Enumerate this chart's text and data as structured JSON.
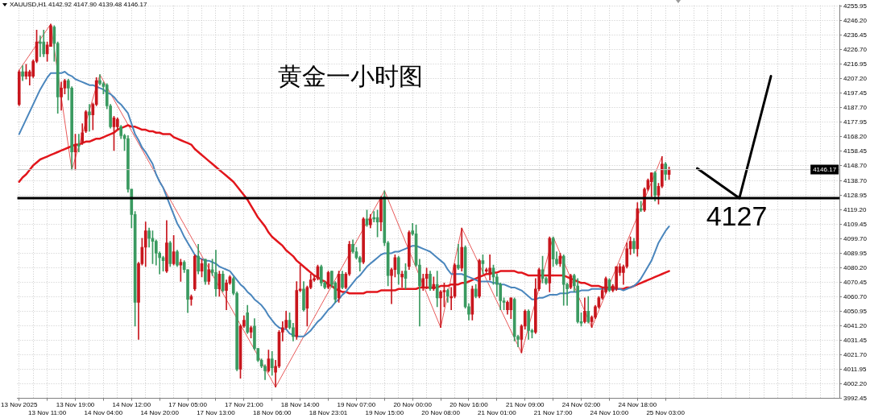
{
  "chart_data": {
    "type": "candlestick",
    "title": "黄金一小时图",
    "annotations": [
      "XAUUSD,H1 4142.92 4147.90 4139.48 4146.17"
    ],
    "categories": [
      "13 Nov 2025",
      null,
      null,
      null,
      null,
      null,
      null,
      null,
      "13 Nov 11:00",
      null,
      null,
      null,
      null,
      null,
      null,
      null,
      "13 Nov 19:00",
      null,
      null,
      null,
      null,
      null,
      null,
      null,
      "14 Nov 04:00",
      null,
      null,
      null,
      null,
      null,
      null,
      null,
      "14 Nov 12:00",
      null,
      null,
      null,
      null,
      null,
      null,
      null,
      "14 Nov 20:00",
      null,
      null,
      null,
      null,
      null,
      null,
      null,
      "17 Nov 05:00",
      null,
      null,
      null,
      null,
      null,
      null,
      null,
      "17 Nov 13:00",
      null,
      null,
      null,
      null,
      null,
      null,
      null,
      "17 Nov 21:00",
      null,
      null,
      null,
      null,
      null,
      null,
      null,
      "18 Nov 06:00",
      null,
      null,
      null,
      null,
      null,
      null,
      null,
      "18 Nov 14:00",
      null,
      null,
      null,
      null,
      null,
      null,
      null,
      "18 Nov 23:01",
      null,
      null,
      null,
      null,
      null,
      null,
      null,
      "19 Nov 07:00",
      null,
      null,
      null,
      null,
      null,
      null,
      null,
      "19 Nov 15:00",
      null,
      null,
      null,
      null,
      null,
      null,
      null,
      "20 Nov 00:00",
      null,
      null,
      null,
      null,
      null,
      null,
      null,
      "20 Nov 08:00",
      null,
      null,
      null,
      null,
      null,
      null,
      null,
      "20 Nov 16:00",
      null,
      null,
      null,
      null,
      null,
      null,
      null,
      "21 Nov 01:00",
      null,
      null,
      null,
      null,
      null,
      null,
      null,
      "21 Nov 09:00",
      null,
      null,
      null,
      null,
      null,
      null,
      null,
      "21 Nov 17:00",
      null,
      null,
      null,
      null,
      null,
      null,
      null,
      "24 Nov 02:00",
      null,
      null,
      null,
      null,
      null,
      null,
      null,
      "24 Nov 10:00",
      null,
      null,
      null,
      null,
      null,
      null,
      null,
      "24 Nov 18:00",
      null,
      null,
      null,
      null,
      null,
      null,
      null,
      "25 Nov 03:00",
      null,
      null,
      null,
      null,
      null,
      null,
      null,
      null,
      null,
      null,
      null,
      null,
      null,
      null,
      null,
      null,
      null,
      null,
      null,
      null,
      null,
      null,
      null,
      null,
      null,
      null,
      null,
      null,
      null,
      null,
      null,
      null,
      null,
      null,
      null,
      null,
      null,
      null,
      null,
      null,
      null,
      null,
      null,
      null,
      null,
      null,
      null,
      null,
      null
    ],
    "ohlc": [
      [
        4190,
        4213,
        4189,
        4212
      ],
      [
        4212,
        4216,
        4206,
        4209
      ],
      [
        4209,
        4217,
        4207,
        4212
      ],
      [
        4209,
        4213,
        4203,
        4212
      ],
      [
        4209,
        4220,
        4208,
        4219
      ],
      [
        4219,
        4240,
        4218,
        4232
      ],
      [
        4232,
        4236,
        4222,
        4231
      ],
      [
        4232,
        4240,
        4222,
        4224
      ],
      [
        4224,
        4232,
        4219,
        4230
      ],
      [
        4229,
        4244,
        4229,
        4243
      ],
      [
        4242,
        4243,
        4219,
        4231
      ],
      [
        4231,
        4232,
        4184,
        4195
      ],
      [
        4195,
        4205,
        4186,
        4201
      ],
      [
        4201,
        4207,
        4197,
        4206
      ],
      [
        4206,
        4207,
        4193,
        4201
      ],
      [
        4201,
        4202,
        4146,
        4158
      ],
      [
        4158,
        4170,
        4146,
        4163
      ],
      [
        4163,
        4170,
        4158,
        4162
      ],
      [
        4164,
        4177,
        4163,
        4171
      ],
      [
        4172,
        4186,
        4171,
        4185
      ],
      [
        4185,
        4190,
        4172,
        4183
      ],
      [
        4183,
        4191,
        4173,
        4190
      ],
      [
        4190,
        4208,
        4189,
        4206
      ],
      [
        4206,
        4210,
        4203,
        4204
      ],
      [
        4204,
        4205,
        4197,
        4202
      ],
      [
        4203,
        4204,
        4187,
        4189
      ],
      [
        4189,
        4190,
        4174,
        4175
      ],
      [
        4175,
        4182,
        4159,
        4181
      ],
      [
        4175,
        4181,
        4173,
        4180
      ],
      [
        4175,
        4176,
        4167,
        4169
      ],
      [
        4169,
        4170,
        4159,
        4167
      ],
      [
        4167,
        4169,
        4131,
        4133
      ],
      [
        4133,
        4133,
        4107,
        4116
      ],
      [
        4116,
        4118,
        4041,
        4057
      ],
      [
        4057,
        4084,
        4032,
        4083
      ],
      [
        4083,
        4100,
        4082,
        4094
      ],
      [
        4094,
        4111,
        4081,
        4105
      ],
      [
        4105,
        4107,
        4094,
        4100
      ],
      [
        4100,
        4105,
        4083,
        4098
      ],
      [
        4098,
        4099,
        4082,
        4090
      ],
      [
        4090,
        4091,
        4076,
        4087
      ],
      [
        4087,
        4088,
        4078,
        4085
      ],
      [
        4078,
        4112,
        4077,
        4097
      ],
      [
        4097,
        4098,
        4081,
        4083
      ],
      [
        4083,
        4102,
        4082,
        4091
      ],
      [
        4091,
        4092,
        4081,
        4082
      ],
      [
        4082,
        4086,
        4071,
        4084
      ],
      [
        4084,
        4085,
        4077,
        4079
      ],
      [
        4079,
        4079,
        4050,
        4059
      ],
      [
        4059,
        4062,
        4055,
        4061
      ],
      [
        4066,
        4089,
        4065,
        4088
      ],
      [
        4088,
        4096,
        4076,
        4078
      ],
      [
        4078,
        4086,
        4074,
        4083
      ],
      [
        4086,
        4086,
        4069,
        4071
      ],
      [
        4071,
        4083,
        4069,
        4079
      ],
      [
        4079,
        4086,
        4075,
        4077
      ],
      [
        4077,
        4092,
        4061,
        4066
      ],
      [
        4066,
        4078,
        4061,
        4076
      ],
      [
        4076,
        4078,
        4064,
        4065
      ],
      [
        4065,
        4072,
        4052,
        4070
      ],
      [
        4070,
        4075,
        4069,
        4074
      ],
      [
        4073,
        4074,
        4062,
        4063
      ],
      [
        4063,
        4064,
        4011,
        4012
      ],
      [
        4012,
        4042,
        4006,
        4041
      ],
      [
        4041,
        4048,
        4040,
        4045
      ],
      [
        4050,
        4055,
        4036,
        4037
      ],
      [
        4037,
        4041,
        4033,
        4040
      ],
      [
        4041,
        4046,
        4025,
        4026
      ],
      [
        4026,
        4026,
        4017,
        4018
      ],
      [
        4018,
        4019,
        4013,
        4014
      ],
      [
        4014,
        4015,
        4005,
        4011
      ],
      [
        4011,
        4025,
        4010,
        4019
      ],
      [
        4019,
        4024,
        4008,
        4013
      ],
      [
        4010,
        4018,
        4000,
        4014
      ],
      [
        4014,
        4038,
        4013,
        4037
      ],
      [
        4037,
        4044,
        4031,
        4040
      ],
      [
        4040,
        4051,
        4039,
        4045
      ],
      [
        4045,
        4050,
        4039,
        4040
      ],
      [
        4040,
        4043,
        4031,
        4034
      ],
      [
        4034,
        4071,
        4032,
        4065
      ],
      [
        4065,
        4082,
        4064,
        4066
      ],
      [
        4066,
        4071,
        4051,
        4052
      ],
      [
        4053,
        4068,
        4041,
        4067
      ],
      [
        4067,
        4076,
        4066,
        4072
      ],
      [
        4072,
        4075,
        4071,
        4073
      ],
      [
        4073,
        4082,
        4072,
        4081
      ],
      [
        4081,
        4082,
        4068,
        4070
      ],
      [
        4070,
        4071,
        4066,
        4067
      ],
      [
        4067,
        4078,
        4066,
        4077
      ],
      [
        4078,
        4078,
        4067,
        4069
      ],
      [
        4070,
        4071,
        4057,
        4059
      ],
      [
        4060,
        4078,
        4057,
        4076
      ],
      [
        4076,
        4078,
        4066,
        4067
      ],
      [
        4067,
        4077,
        4066,
        4076
      ],
      [
        4076,
        4098,
        4075,
        4096
      ],
      [
        4096,
        4099,
        4090,
        4091
      ],
      [
        4091,
        4094,
        4086,
        4087
      ],
      [
        4087,
        4088,
        4078,
        4084
      ],
      [
        4084,
        4114,
        4083,
        4113
      ],
      [
        4113,
        4119,
        4108,
        4109
      ],
      [
        4109,
        4116,
        4107,
        4113
      ],
      [
        4114,
        4118,
        4111,
        4113
      ],
      [
        4114,
        4119,
        4101,
        4111
      ],
      [
        4111,
        4128,
        4105,
        4127
      ],
      [
        4128,
        4132,
        4095,
        4097
      ],
      [
        4097,
        4098,
        4068,
        4075
      ],
      [
        4075,
        4080,
        4056,
        4079
      ],
      [
        4079,
        4089,
        4074,
        4087
      ],
      [
        4087,
        4088,
        4069,
        4076
      ],
      [
        4074,
        4078,
        4067,
        4076
      ],
      [
        4078,
        4083,
        4066,
        4073
      ],
      [
        4081,
        4105,
        4079,
        4104
      ],
      [
        4105,
        4110,
        4102,
        4103
      ],
      [
        4103,
        4109,
        4081,
        4082
      ],
      [
        4082,
        4086,
        4041,
        4068
      ],
      [
        4067,
        4076,
        4065,
        4073
      ],
      [
        4073,
        4080,
        4066,
        4076
      ],
      [
        4076,
        4078,
        4065,
        4066
      ],
      [
        4066,
        4074,
        4065,
        4069
      ],
      [
        4069,
        4078,
        4054,
        4060
      ],
      [
        4060,
        4065,
        4040,
        4064
      ],
      [
        4064,
        4070,
        4054,
        4065
      ],
      [
        4065,
        4066,
        4057,
        4061
      ],
      [
        4060,
        4067,
        4052,
        4061
      ],
      [
        4061,
        4083,
        4060,
        4082
      ],
      [
        4082,
        4096,
        4079,
        4080
      ],
      [
        4080,
        4107,
        4078,
        4094
      ],
      [
        4094,
        4095,
        4053,
        4054
      ],
      [
        4054,
        4056,
        4045,
        4049
      ],
      [
        4049,
        4068,
        4045,
        4066
      ],
      [
        4066,
        4069,
        4060,
        4061
      ],
      [
        4061,
        4086,
        4060,
        4085
      ],
      [
        4085,
        4089,
        4076,
        4083
      ],
      [
        4078,
        4080,
        4077,
        4079
      ],
      [
        4076,
        4089,
        4072,
        4080
      ],
      [
        4080,
        4082,
        4069,
        4074
      ],
      [
        4074,
        4076,
        4061,
        4069
      ],
      [
        4069,
        4070,
        4052,
        4058
      ],
      [
        4058,
        4060,
        4052,
        4057
      ],
      [
        4052,
        4058,
        4049,
        4057
      ],
      [
        4052,
        4060,
        4046,
        4060
      ],
      [
        4059,
        4060,
        4031,
        4034
      ],
      [
        4034,
        4035,
        4027,
        4032
      ],
      [
        4032,
        4042,
        4023,
        4041
      ],
      [
        4041,
        4052,
        4039,
        4051
      ],
      [
        4051,
        4052,
        4032,
        4038
      ],
      [
        4038,
        4039,
        4033,
        4037
      ],
      [
        4037,
        4073,
        4036,
        4066
      ],
      [
        4066,
        4080,
        4065,
        4079
      ],
      [
        4079,
        4088,
        4070,
        4073
      ],
      [
        4073,
        4074,
        4069,
        4070
      ],
      [
        4070,
        4101,
        4064,
        4100
      ],
      [
        4100,
        4101,
        4081,
        4086
      ],
      [
        4086,
        4091,
        4082,
        4083
      ],
      [
        4083,
        4090,
        4081,
        4088
      ],
      [
        4088,
        4089,
        4055,
        4069
      ],
      [
        4069,
        4070,
        4055,
        4066
      ],
      [
        4067,
        4076,
        4066,
        4075
      ],
      [
        4075,
        4076,
        4064,
        4068
      ],
      [
        4068,
        4073,
        4043,
        4044
      ],
      [
        4044,
        4050,
        4041,
        4043
      ],
      [
        4044,
        4060,
        4043,
        4051
      ],
      [
        4051,
        4061,
        4043,
        4044
      ],
      [
        4044,
        4048,
        4040,
        4047
      ],
      [
        4047,
        4055,
        4046,
        4054
      ],
      [
        4054,
        4061,
        4053,
        4060
      ],
      [
        4060,
        4067,
        4059,
        4065
      ],
      [
        4064,
        4074,
        4063,
        4073
      ],
      [
        4072,
        4073,
        4064,
        4065
      ],
      [
        4065,
        4069,
        4064,
        4068
      ],
      [
        4066,
        4081,
        4065,
        4081
      ],
      [
        4077,
        4083,
        4075,
        4081
      ],
      [
        4077,
        4082,
        4069,
        4081
      ],
      [
        4081,
        4097,
        4080,
        4093
      ],
      [
        4093,
        4101,
        4089,
        4098
      ],
      [
        4098,
        4100,
        4090,
        4093
      ],
      [
        4093,
        4124,
        4088,
        4120
      ],
      [
        4120,
        4125,
        4118,
        4119
      ],
      [
        4119,
        4134,
        4118,
        4133
      ],
      [
        4133,
        4140,
        4132,
        4139
      ],
      [
        4138,
        4144,
        4128,
        4144
      ],
      [
        4144,
        4145,
        4125,
        4129
      ],
      [
        4129,
        4137,
        4123,
        4135
      ],
      [
        4135,
        4155,
        4134,
        4150
      ],
      [
        4150,
        4151,
        4139,
        4143
      ],
      [
        4142.92,
        4147.9,
        4139.48,
        4146.17
      ],
      null,
      null,
      null,
      null,
      null,
      null,
      null,
      null,
      null,
      null,
      null,
      null,
      null,
      null,
      null,
      null,
      null,
      null,
      null,
      null,
      null,
      null,
      null,
      null,
      null,
      null,
      null,
      null,
      null,
      null,
      null,
      null,
      null,
      null,
      null,
      null,
      null,
      null,
      null,
      null,
      null,
      null,
      null,
      null,
      null,
      null,
      null,
      null
    ],
    "colors": [
      "#c8161d",
      "#3a9a60",
      "#c8161d",
      "#c8161d",
      "#c8161d",
      "#c8161d",
      "#3a9a60",
      "#3a9a60",
      "#c8161d",
      "#c8161d",
      "#3a9a60",
      "#3a9a60",
      "#c8161d",
      "#c8161d",
      "#3a9a60",
      "#3a9a60",
      "#c8161d",
      "#3a9a60",
      "#c8161d",
      "#c8161d",
      "#3a9a60",
      "#c8161d",
      "#c8161d",
      "#3a9a60",
      "#3a9a60",
      "#3a9a60",
      "#3a9a60",
      "#c8161d",
      "#c8161d",
      "#3a9a60",
      "#3a9a60",
      "#3a9a60",
      "#3a9a60",
      "#3a9a60",
      "#c8161d",
      "#c8161d",
      "#c8161d",
      "#3a9a60",
      "#3a9a60",
      "#3a9a60",
      "#3a9a60",
      "#3a9a60",
      "#c8161d",
      "#3a9a60",
      "#c8161d",
      "#3a9a60",
      "#c8161d",
      "#3a9a60",
      "#3a9a60",
      "#c8161d",
      "#c8161d",
      "#3a9a60",
      "#c8161d",
      "#3a9a60",
      "#c8161d",
      "#3a9a60",
      "#3a9a60",
      "#c8161d",
      "#3a9a60",
      "#c8161d",
      "#c8161d",
      "#3a9a60",
      "#3a9a60",
      "#c8161d",
      "#c8161d",
      "#3a9a60",
      "#c8161d",
      "#3a9a60",
      "#3a9a60",
      "#3a9a60",
      "#3a9a60",
      "#c8161d",
      "#3a9a60",
      "#c8161d",
      "#c8161d",
      "#c8161d",
      "#c8161d",
      "#3a9a60",
      "#3a9a60",
      "#c8161d",
      "#c8161d",
      "#3a9a60",
      "#c8161d",
      "#c8161d",
      "#c8161d",
      "#c8161d",
      "#3a9a60",
      "#3a9a60",
      "#c8161d",
      "#3a9a60",
      "#3a9a60",
      "#c8161d",
      "#3a9a60",
      "#c8161d",
      "#c8161d",
      "#3a9a60",
      "#3a9a60",
      "#3a9a60",
      "#c8161d",
      "#3a9a60",
      "#c8161d",
      "#3a9a60",
      "#3a9a60",
      "#c8161d",
      "#3a9a60",
      "#3a9a60",
      "#c8161d",
      "#c8161d",
      "#3a9a60",
      "#c8161d",
      "#3a9a60",
      "#c8161d",
      "#3a9a60",
      "#3a9a60",
      "#3a9a60",
      "#c8161d",
      "#c8161d",
      "#3a9a60",
      "#c8161d",
      "#3a9a60",
      "#c8161d",
      "#c8161d",
      "#3a9a60",
      "#c8161d",
      "#c8161d",
      "#3a9a60",
      "#c8161d",
      "#3a9a60",
      "#3a9a60",
      "#c8161d",
      "#3a9a60",
      "#c8161d",
      "#3a9a60",
      "#c8161d",
      "#c8161d",
      "#3a9a60",
      "#3a9a60",
      "#3a9a60",
      "#3a9a60",
      "#c8161d",
      "#c8161d",
      "#3a9a60",
      "#3a9a60",
      "#c8161d",
      "#c8161d",
      "#3a9a60",
      "#3a9a60",
      "#c8161d",
      "#c8161d",
      "#3a9a60",
      "#3a9a60",
      "#c8161d",
      "#3a9a60",
      "#3a9a60",
      "#c8161d",
      "#3a9a60",
      "#3a9a60",
      "#c8161d",
      "#3a9a60",
      "#3a9a60",
      "#3a9a60",
      "#c8161d",
      "#3a9a60",
      "#c8161d",
      "#c8161d",
      "#c8161d",
      "#c8161d",
      "#c8161d",
      "#3a9a60",
      "#c8161d",
      "#c8161d",
      "#c8161d",
      "#c8161d",
      "#c8161d",
      "#c8161d",
      "#3a9a60",
      "#c8161d",
      "#3a9a60",
      "#c8161d",
      "#c8161d",
      "#c8161d",
      "#3a9a60",
      "#c8161d",
      "#c8161d",
      "#3a9a60",
      "#c8161d",
      null,
      null,
      null,
      null,
      null,
      null,
      null,
      null,
      null,
      null,
      null,
      null,
      null,
      null,
      null,
      null,
      null,
      null,
      null,
      null,
      null,
      null,
      null,
      null,
      null,
      null,
      null,
      null,
      null,
      null,
      null,
      null,
      null,
      null,
      null,
      null,
      null,
      null,
      null,
      null,
      null,
      null,
      null,
      null,
      null,
      null,
      null,
      null
    ],
    "series": [
      {
        "type": "line",
        "color": "#4a86bd",
        "values": [
          4170,
          4175,
          4180,
          4185,
          4190,
          4195,
          4200,
          4204,
          4208,
          4211,
          4211,
          4211,
          4211,
          4212,
          4210,
          4209,
          4207,
          4206,
          4205,
          4204,
          4203,
          4203,
          4202,
          4201,
          4200,
          4198,
          4197,
          4195,
          4192,
          4190,
          4187,
          4184,
          4177,
          4170,
          4166,
          4161,
          4158,
          4154,
          4150,
          4143,
          4138,
          4134,
          4128,
          4122,
          4116,
          4110,
          4106,
          4101,
          4097,
          4093,
          4089,
          4087,
          4086,
          4085,
          4085,
          4084,
          4083,
          4081,
          4080,
          4079,
          4078,
          4075,
          4072,
          4069,
          4067,
          4064,
          4062,
          4059,
          4057,
          4055,
          4052,
          4048,
          4045,
          4042,
          4040,
          4039,
          4039,
          4036,
          4035,
          4034,
          4034,
          4034,
          4036,
          4038,
          4041,
          4044,
          4046,
          4049,
          4052,
          4054,
          4057,
          4059,
          4062,
          4064,
          4067,
          4070,
          4073,
          4075,
          4078,
          4081,
          4083,
          4085,
          4087,
          4089,
          4090,
          4090,
          4090,
          4091,
          4091,
          4092,
          4093,
          4094,
          4095,
          4095,
          4094,
          4093,
          4092,
          4091,
          4089,
          4087,
          4085,
          4083,
          4079,
          4076,
          4076,
          4076,
          4076,
          4075,
          4074,
          4073,
          4072,
          4071,
          4071,
          4071,
          4071,
          4070,
          4070,
          4069,
          4069,
          4068,
          4067,
          4067,
          4066,
          4065,
          4063,
          4061,
          4059,
          4059,
          4060,
          4060,
          4061,
          4062,
          4062,
          4062,
          4063,
          4063,
          4063,
          4064,
          4064,
          4064,
          4065,
          4065,
          4065,
          4066,
          4066,
          4066,
          4066,
          4066,
          4066,
          4066,
          4066,
          4066,
          4065,
          4066,
          4067,
          4068,
          4070,
          4073,
          4077,
          4081,
          4085,
          4091,
          4097,
          4101,
          4105,
          4108,
          null,
          null,
          null,
          null,
          null,
          null,
          null,
          null,
          null,
          null,
          null,
          null,
          null,
          null,
          null,
          null,
          null,
          null,
          null,
          null,
          null,
          null,
          null,
          null,
          null,
          null,
          null,
          null,
          null,
          null,
          null,
          null,
          null,
          null,
          null,
          null,
          null,
          null,
          null,
          null,
          null,
          null,
          null,
          null,
          null,
          null,
          null,
          null
        ]
      },
      {
        "type": "line",
        "color": "#e2161c",
        "values": [
          4138,
          4141,
          4143,
          4146,
          4149,
          4151,
          4153,
          4154,
          4155,
          4156,
          4157,
          4158,
          4159,
          4160,
          4161,
          4162,
          4163,
          4163,
          4164,
          4165,
          4165,
          4166,
          4167,
          4167,
          4168,
          4169,
          4170,
          4171,
          4173,
          4174,
          4175,
          4176,
          4175,
          4175,
          4174,
          4173,
          4173,
          4172,
          4172,
          4171,
          4171,
          4170,
          4170,
          4170,
          4168,
          4167,
          4166,
          4165,
          4164,
          4163,
          4160,
          4158,
          4156,
          4154,
          4152,
          4150,
          4148,
          4146,
          4144,
          4142,
          4140,
          4138,
          4135,
          4132,
          4129,
          4126,
          4122,
          4118,
          4114,
          4111,
          4108,
          4104,
          4101,
          4099,
          4097,
          4095,
          4092,
          4090,
          4088,
          4085,
          4083,
          4081,
          4079,
          4077,
          4075,
          4074,
          4072,
          4071,
          4069,
          4068,
          4066,
          4065,
          4064,
          4064,
          4063,
          4063,
          4063,
          4063,
          4063,
          4064,
          4064,
          4064,
          4064,
          4065,
          4065,
          4065,
          4065,
          4065,
          4066,
          4066,
          4066,
          4066,
          4066,
          4066,
          4067,
          4067,
          4067,
          4067,
          4067,
          4067,
          4068,
          4068,
          4068,
          4069,
          4069,
          4069,
          4070,
          4070,
          4071,
          4072,
          4073,
          4074,
          4075,
          4076,
          4076,
          4077,
          4077,
          4078,
          4078,
          4078,
          4078,
          4078,
          4077,
          4077,
          4076,
          4075,
          4075,
          4075,
          4075,
          4075,
          4075,
          4075,
          4075,
          4075,
          4075,
          4075,
          4074,
          4073,
          4072,
          4071,
          4070,
          4070,
          4069,
          4068,
          4068,
          4068,
          4067,
          4067,
          4067,
          4067,
          4066,
          4066,
          4066,
          4067,
          4067,
          4068,
          4069,
          4070,
          4071,
          4072,
          4073,
          4074,
          4075,
          4076,
          4077,
          4078,
          null,
          null,
          null,
          null,
          null,
          null,
          null,
          null,
          null,
          null,
          null,
          null,
          null,
          null,
          null,
          null,
          null,
          null,
          null,
          null,
          null,
          null,
          null,
          null,
          null,
          null,
          null,
          null,
          null,
          null,
          null,
          null,
          null,
          null,
          null,
          null,
          null,
          null,
          null,
          null,
          null,
          null,
          null,
          null,
          null,
          null,
          null,
          null
        ]
      },
      {
        "type": "line",
        "color": "#e85a5a",
        "values": [
          4213,
          null,
          null,
          null,
          null,
          null,
          null,
          null,
          null,
          4244,
          null,
          null,
          null,
          null,
          null,
          4146,
          null,
          null,
          null,
          null,
          null,
          null,
          null,
          4210,
          null,
          null,
          null,
          null,
          null,
          null,
          null,
          null,
          null,
          null,
          null,
          null,
          null,
          null,
          null,
          null,
          null,
          null,
          null,
          null,
          null,
          null,
          null,
          null,
          null,
          null,
          null,
          null,
          null,
          null,
          null,
          null,
          null,
          null,
          null,
          null,
          null,
          null,
          null,
          null,
          null,
          null,
          null,
          null,
          null,
          null,
          null,
          null,
          null,
          4000,
          null,
          null,
          null,
          null,
          null,
          null,
          null,
          null,
          null,
          null,
          null,
          null,
          null,
          null,
          null,
          null,
          null,
          null,
          null,
          null,
          null,
          null,
          null,
          null,
          null,
          null,
          null,
          null,
          null,
          null,
          4132,
          null,
          null,
          null,
          null,
          null,
          null,
          null,
          null,
          null,
          null,
          null,
          null,
          null,
          null,
          null,
          4040,
          null,
          null,
          null,
          null,
          null,
          4107,
          null,
          null,
          null,
          null,
          null,
          null,
          null,
          null,
          null,
          null,
          null,
          null,
          null,
          null,
          null,
          null,
          4023,
          null,
          null,
          null,
          null,
          null,
          null,
          null,
          null,
          4101,
          null,
          null,
          null,
          null,
          null,
          null,
          null,
          null,
          null,
          null,
          4040,
          null,
          null,
          null,
          null,
          null,
          null,
          null,
          null,
          null,
          null,
          null,
          null,
          null,
          null,
          null,
          null,
          null,
          null,
          null,
          4155,
          null,
          null,
          null,
          null,
          null,
          null,
          null,
          null,
          null,
          null,
          null,
          null,
          null,
          null,
          null,
          null,
          null,
          null,
          null,
          null,
          null,
          null,
          null,
          null,
          null,
          null,
          null,
          null,
          null,
          null,
          null,
          null,
          null,
          null,
          null,
          null,
          null,
          null,
          null,
          null,
          null,
          null,
          null,
          null,
          null,
          null,
          null,
          null,
          null,
          null
        ]
      },
      {
        "type": "line",
        "color": "#000000",
        "values": [
          null,
          null,
          null,
          null,
          null,
          null,
          null,
          null,
          null,
          null,
          null,
          null,
          null,
          null,
          null,
          null,
          null,
          null,
          null,
          null,
          null,
          null,
          null,
          null,
          null,
          null,
          null,
          null,
          null,
          null,
          null,
          null,
          null,
          null,
          null,
          null,
          null,
          null,
          null,
          null,
          null,
          null,
          null,
          null,
          null,
          null,
          null,
          null,
          null,
          null,
          null,
          null,
          null,
          null,
          null,
          null,
          null,
          null,
          null,
          null,
          null,
          null,
          null,
          null,
          null,
          null,
          null,
          null,
          null,
          null,
          null,
          null,
          null,
          null,
          null,
          null,
          null,
          null,
          null,
          null,
          null,
          null,
          null,
          null,
          null,
          null,
          null,
          null,
          null,
          null,
          null,
          null,
          null,
          null,
          null,
          null,
          null,
          null,
          null,
          null,
          null,
          null,
          null,
          null,
          null,
          null,
          null,
          null,
          null,
          null,
          null,
          null,
          null,
          null,
          null,
          null,
          null,
          null,
          null,
          null,
          null,
          null,
          null,
          null,
          null,
          null,
          null,
          null,
          null,
          null,
          null,
          null,
          null,
          null,
          null,
          null,
          null,
          null,
          null,
          null,
          null,
          null,
          null,
          null,
          null,
          null,
          null,
          null,
          null,
          null,
          null,
          null,
          null,
          null,
          null,
          null,
          null,
          null,
          null,
          null,
          null,
          null,
          null,
          null,
          null,
          null,
          null,
          null,
          null,
          null,
          null,
          null,
          null,
          null,
          null,
          null,
          null,
          null,
          null,
          null,
          null,
          null,
          null,
          null,
          null,
          null,
          null,
          null,
          null,
          null,
          null,
          null,
          null,
          4147,
          null,
          null,
          null,
          null,
          null,
          null,
          null,
          null,
          null,
          null,
          null,
          4127,
          null,
          null,
          null,
          null,
          null,
          null,
          null,
          null,
          4209,
          null,
          null,
          null,
          null,
          null,
          null,
          null,
          null,
          null,
          null,
          null,
          null,
          null,
          null,
          null,
          null,
          null,
          null,
          null
        ]
      }
    ],
    "ylim": [
      3992.45,
      4256.5
    ],
    "yticks": [
      3992.45,
      {
        "value": 4002.2,
        "label": "4002.20"
      },
      4011.95,
      {
        "value": 4021.7,
        "label": "4021.70"
      },
      4031.45,
      {
        "value": 4041.2,
        "label": "4041.20"
      },
      4050.95,
      {
        "value": 4060.7,
        "label": "4060.70"
      },
      4070.45,
      {
        "value": 4080.2,
        "label": "4080.20"
      },
      4089.95,
      {
        "value": 4099.7,
        "label": "4099.70"
      },
      4109.45,
      {
        "value": 4119.2,
        "label": "4119.20"
      },
      4128.95,
      {
        "value": 4138.7,
        "label": "4138.70"
      },
      {
        "value": 4148.7,
        "label": "4148.70"
      },
      4158.45,
      {
        "value": 4168.2,
        "label": "4168.20"
      },
      4177.95,
      {
        "value": 4187.7,
        "label": "4187.70"
      },
      4197.45,
      {
        "value": 4207.2,
        "label": "4207.20"
      },
      4216.95,
      {
        "value": 4226.7,
        "label": "4226.70"
      },
      4236.45,
      {
        "value": 4246.2,
        "label": "4246.20"
      },
      4255.95
    ],
    "grid": true,
    "ref_lines": [
      {
        "axis": "y",
        "value": 4127,
        "label": "4127",
        "color": "#000000"
      },
      {
        "axis": "y",
        "value": 4146.17,
        "label": "4146.17",
        "color": "#c8c8c8"
      }
    ]
  }
}
